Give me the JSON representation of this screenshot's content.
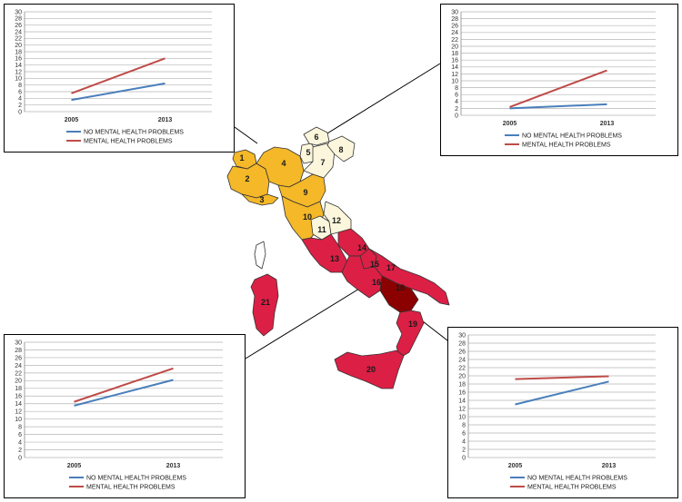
{
  "map": {
    "colors": {
      "north_yellow": "#f4b828",
      "light": "#fbf6dc",
      "red": "#dc1f45",
      "dark_red": "#8b0000",
      "border": "#333333"
    },
    "regions": [
      {
        "number": "1",
        "tier": "north_yellow"
      },
      {
        "number": "2",
        "tier": "north_yellow"
      },
      {
        "number": "3",
        "tier": "north_yellow"
      },
      {
        "number": "4",
        "tier": "north_yellow"
      },
      {
        "number": "5",
        "tier": "light"
      },
      {
        "number": "6",
        "tier": "light"
      },
      {
        "number": "7",
        "tier": "light"
      },
      {
        "number": "8",
        "tier": "light"
      },
      {
        "number": "9",
        "tier": "north_yellow"
      },
      {
        "number": "10",
        "tier": "north_yellow"
      },
      {
        "number": "11",
        "tier": "light"
      },
      {
        "number": "12",
        "tier": "light"
      },
      {
        "number": "13",
        "tier": "red"
      },
      {
        "number": "14",
        "tier": "red"
      },
      {
        "number": "15",
        "tier": "red"
      },
      {
        "number": "16",
        "tier": "red"
      },
      {
        "number": "17",
        "tier": "red"
      },
      {
        "number": "18",
        "tier": "dark_red"
      },
      {
        "number": "19",
        "tier": "red"
      },
      {
        "number": "20",
        "tier": "red"
      },
      {
        "number": "21",
        "tier": "red"
      }
    ]
  },
  "chart_data": [
    {
      "type": "line",
      "panel": "top-left",
      "categories": [
        "2005",
        "2013"
      ],
      "ylim": [
        0,
        30
      ],
      "yticks": [
        "0",
        "2",
        "4",
        "6",
        "8",
        "10",
        "12",
        "14",
        "16",
        "18",
        "20",
        "22",
        "24",
        "26",
        "28",
        "30"
      ],
      "grid": true,
      "legend_position": "bottom",
      "series": [
        {
          "name": "NO MENTAL HEALTH PROBLEMS",
          "color": "#4a7ebb",
          "values": [
            3.5,
            8.5
          ]
        },
        {
          "name": "MENTAL HEALTH PROBLEMS",
          "color": "#be4b48",
          "values": [
            5.5,
            16
          ]
        }
      ]
    },
    {
      "type": "line",
      "panel": "top-right",
      "categories": [
        "2005",
        "2013"
      ],
      "ylim": [
        0,
        30
      ],
      "yticks": [
        "0",
        "2",
        "4",
        "6",
        "8",
        "10",
        "12",
        "14",
        "16",
        "18",
        "20",
        "22",
        "24",
        "26",
        "28",
        "30"
      ],
      "grid": true,
      "legend_position": "bottom",
      "series": [
        {
          "name": "NO MENTAL HEALTH PROBLEMS",
          "color": "#4a7ebb",
          "values": [
            2,
            3.2
          ]
        },
        {
          "name": "MENTAL HEALTH PROBLEMS",
          "color": "#be4b48",
          "values": [
            2.4,
            13
          ]
        }
      ]
    },
    {
      "type": "line",
      "panel": "bottom-left",
      "categories": [
        "2005",
        "2013"
      ],
      "ylim": [
        0,
        30
      ],
      "yticks": [
        "0",
        "2",
        "4",
        "6",
        "8",
        "10",
        "12",
        "14",
        "16",
        "18",
        "20",
        "22",
        "24",
        "26",
        "28",
        "30"
      ],
      "grid": true,
      "legend_position": "bottom",
      "series": [
        {
          "name": "NO MENTAL HEALTH PROBLEMS",
          "color": "#4a7ebb",
          "values": [
            13.5,
            20.2
          ]
        },
        {
          "name": "MENTAL HEALTH PROBLEMS",
          "color": "#be4b48",
          "values": [
            14.5,
            23.2
          ]
        }
      ]
    },
    {
      "type": "line",
      "panel": "bottom-right",
      "categories": [
        "2005",
        "2013"
      ],
      "ylim": [
        0,
        30
      ],
      "yticks": [
        "0",
        "2",
        "4",
        "6",
        "8",
        "10",
        "12",
        "14",
        "16",
        "18",
        "20",
        "22",
        "24",
        "26",
        "28",
        "30"
      ],
      "grid": true,
      "legend_position": "bottom",
      "series": [
        {
          "name": "NO MENTAL HEALTH PROBLEMS",
          "color": "#4a7ebb",
          "values": [
            13,
            18.6
          ]
        },
        {
          "name": "MENTAL HEALTH PROBLEMS",
          "color": "#be4b48",
          "values": [
            19.2,
            19.9
          ]
        }
      ]
    }
  ]
}
